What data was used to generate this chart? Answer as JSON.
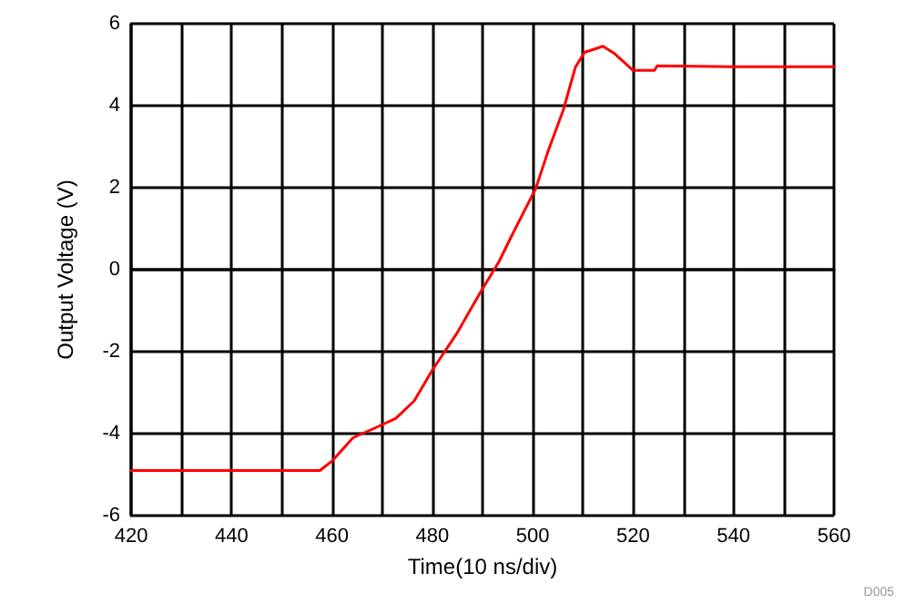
{
  "chart_data": {
    "type": "line",
    "xlabel": "Time(10 ns/div)",
    "ylabel": "Output Voltage (V)",
    "annotations": [
      "D005"
    ],
    "grid": true,
    "line_style": "solid",
    "marker": "none",
    "xlim": [
      420,
      560
    ],
    "ylim": [
      -6,
      6
    ],
    "xticks": [
      420,
      {
        "value": 430,
        "label": null
      },
      440,
      {
        "value": 450,
        "label": null
      },
      460,
      {
        "value": 470,
        "label": null
      },
      480,
      {
        "value": 490,
        "label": null
      },
      500,
      {
        "value": 510,
        "label": null
      },
      520,
      {
        "value": 530,
        "label": null
      },
      540,
      {
        "value": 550,
        "label": null
      },
      560
    ],
    "yticks": [
      -6,
      -4,
      -2,
      0,
      2,
      4,
      6
    ],
    "series": [
      {
        "color": "#ff0000",
        "x": [
          420,
          440,
          457.6,
          460,
          464.2,
          467.9,
          472.7,
          476.4,
          480,
          484.8,
          489.7,
          493.3,
          495.7,
          500.6,
          503,
          506.1,
          508.5,
          510.3,
          514,
          516.4,
          520,
          524.2,
          524.8,
          540,
          560
        ],
        "values": [
          -4.9,
          -4.9,
          -4.9,
          -4.67,
          -4.1,
          -3.9,
          -3.63,
          -3.2,
          -2.45,
          -1.57,
          -0.53,
          0.2,
          0.8,
          1.98,
          2.87,
          3.9,
          4.94,
          5.3,
          5.45,
          5.26,
          4.86,
          4.86,
          4.97,
          4.95,
          4.95
        ]
      }
    ]
  }
}
